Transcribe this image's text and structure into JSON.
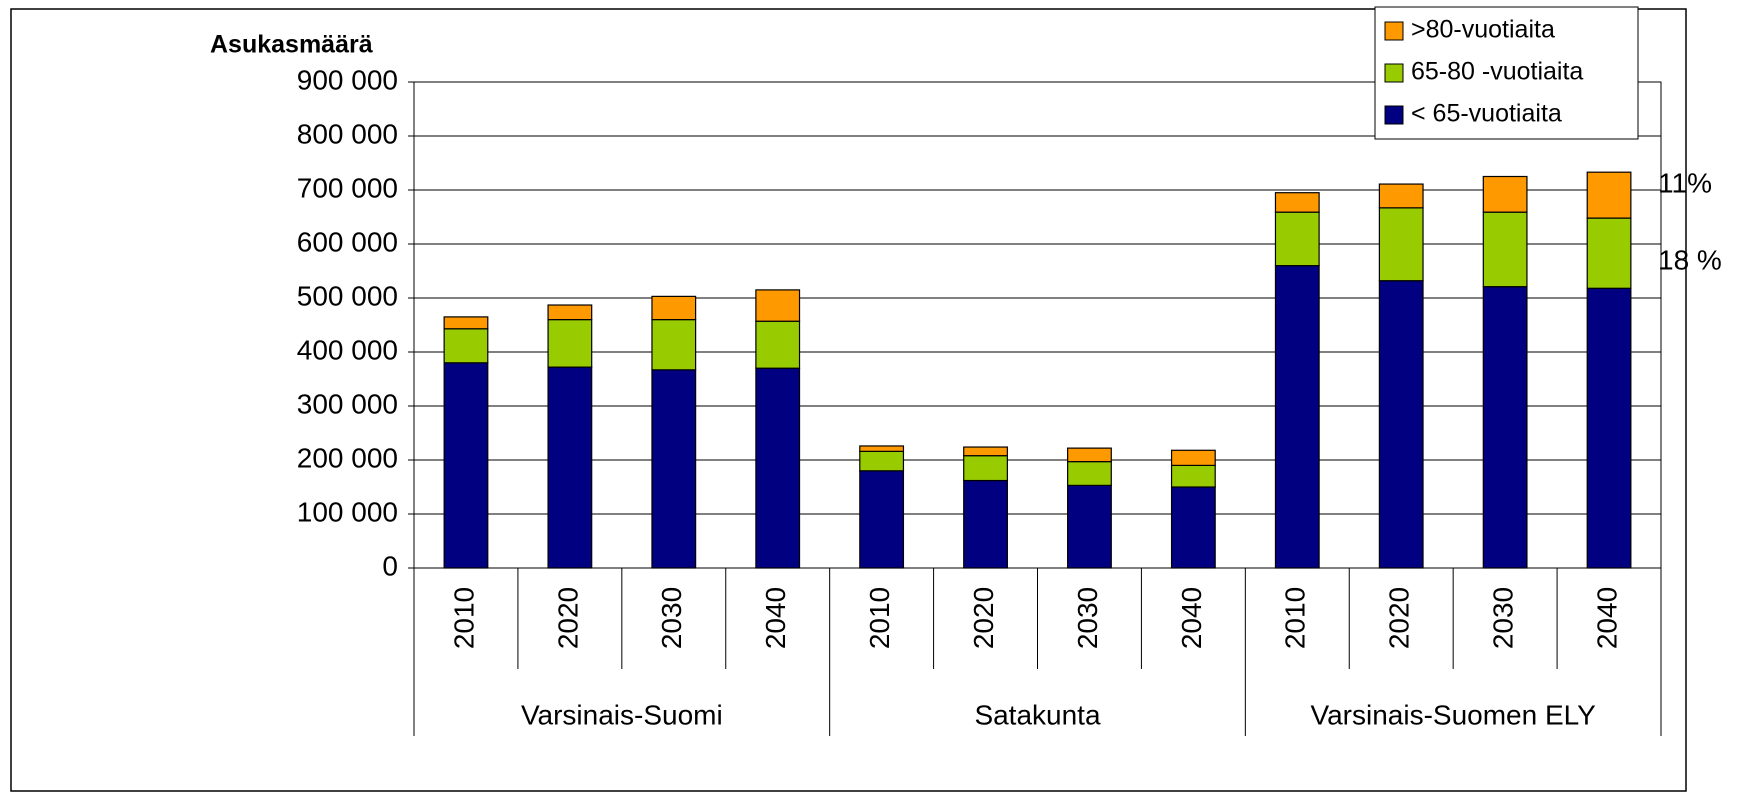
{
  "chart_data": {
    "type": "bar",
    "stacked": true,
    "y_label": "Asukasmäärä",
    "categories": [
      "2010",
      "2020",
      "2030",
      "2040",
      "2010",
      "2020",
      "2030",
      "2040",
      "2010",
      "2020",
      "2030",
      "2040"
    ],
    "groups": [
      "Varsinais-Suomi",
      "Satakunta",
      "Varsinais-Suomen ELY"
    ],
    "series": [
      {
        "name": "< 65-vuotiaita",
        "color": "#000080",
        "values": [
          380000,
          372000,
          367000,
          370000,
          180000,
          162000,
          153000,
          150000,
          560000,
          532000,
          521000,
          518000
        ]
      },
      {
        "name": "65-80 -vuotiaita",
        "color": "#99cc00",
        "values": [
          63000,
          88000,
          93000,
          87000,
          36000,
          46000,
          44000,
          40000,
          99000,
          135000,
          138000,
          130000
        ]
      },
      {
        "name": ">80-vuotiaita",
        "color": "#ff9900",
        "values": [
          22000,
          27000,
          43000,
          58000,
          10000,
          16000,
          25000,
          28000,
          36000,
          44000,
          66000,
          85000
        ]
      }
    ],
    "ylim": [
      0,
      900000
    ],
    "yticks": [
      0,
      {
        "value": 100000,
        "label": "100 000"
      },
      {
        "value": 200000,
        "label": "200 000"
      },
      {
        "value": 300000,
        "label": "300 000"
      },
      {
        "value": 400000,
        "label": "400 000"
      },
      {
        "value": 500000,
        "label": "500 000"
      },
      {
        "value": 600000,
        "label": "600 000"
      },
      {
        "value": 700000,
        "label": "700 000"
      },
      {
        "value": 800000,
        "label": "800 000"
      },
      {
        "value": 900000,
        "label": "900 000"
      }
    ],
    "grid": true,
    "legend": "top-right",
    "annotations": [
      "11%",
      "18 %"
    ]
  }
}
